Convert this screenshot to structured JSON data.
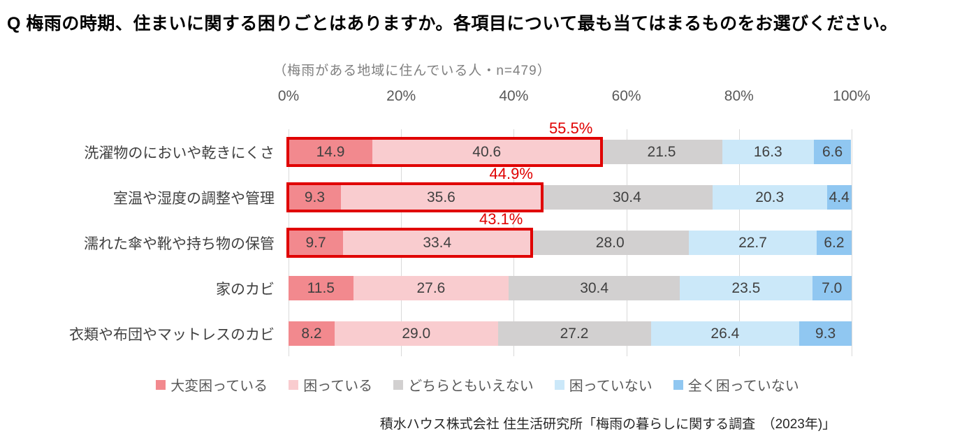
{
  "page": {
    "title": "Q 梅雨の時期、住まいに関する困りごとはありますか。各項目について最も当てはまるものをお選びください。",
    "subtitle": "（梅雨がある地域に住んでいる人・n=479）",
    "source": "積水ハウス株式会社 住生活研究所「梅雨の暮らしに関する調査　（2023年)」"
  },
  "colors": {
    "highlight_red": "#e00000",
    "grid_line": "#d9d9d9",
    "axis_text": "#595959",
    "bar_label_text": "#404040",
    "subtitle_text": "#7f7f7f"
  },
  "chart_data": {
    "type": "bar",
    "variant": "horizontal-stacked-100",
    "title": "Q 梅雨の時期、住まいに関する困りごとはありますか。各項目について最も当てはまるものをお選びください。",
    "subtitle": "（梅雨がある地域に住んでいる人・n=479）",
    "categories": [
      "洗濯物のにおいや乾きにくさ",
      "室温や湿度の調整や管理",
      "濡れた傘や靴や持ち物の保管",
      "家のカビ",
      "衣類や布団やマットレスのカビ"
    ],
    "series": [
      {
        "name": "大変困っている",
        "color": "#f2898e",
        "values": [
          14.9,
          9.3,
          9.7,
          11.5,
          8.2
        ]
      },
      {
        "name": "困っている",
        "color": "#f9cccf",
        "values": [
          40.6,
          35.6,
          33.4,
          27.6,
          29.0
        ]
      },
      {
        "name": "どちらともいえない",
        "color": "#d2d0d0",
        "values": [
          21.5,
          30.4,
          28.0,
          30.4,
          27.2
        ]
      },
      {
        "name": "困っていない",
        "color": "#cbe8f9",
        "values": [
          16.3,
          20.3,
          22.7,
          23.5,
          26.4
        ]
      },
      {
        "name": "全く困っていない",
        "color": "#90c7f1",
        "values": [
          6.6,
          4.4,
          6.2,
          7.0,
          9.3
        ]
      }
    ],
    "x_ticks": [
      "0%",
      "20%",
      "40%",
      "60%",
      "80%",
      "100%"
    ],
    "xlim": [
      0,
      100
    ],
    "grid": true,
    "legend_position": "bottom",
    "highlights": [
      {
        "row": 0,
        "label": "55.5%",
        "series_span": 2
      },
      {
        "row": 1,
        "label": "44.9%",
        "series_span": 2
      },
      {
        "row": 2,
        "label": "43.1%",
        "series_span": 2
      }
    ]
  }
}
